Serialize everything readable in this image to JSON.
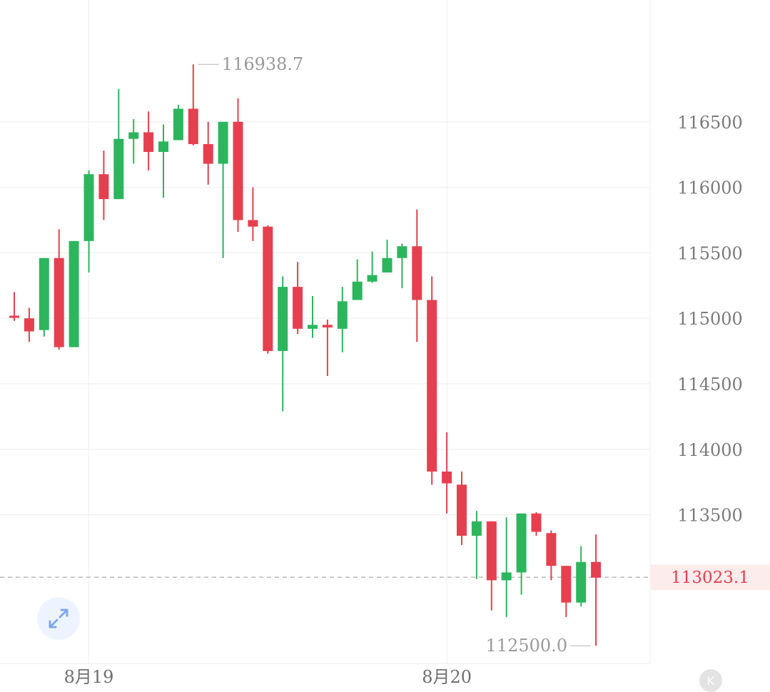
{
  "chart_data": {
    "type": "candlestick",
    "x_labels": [
      "8月19",
      "8月20"
    ],
    "y_ticks": [
      116500,
      116000,
      115500,
      115000,
      114500,
      114000,
      113500
    ],
    "ylim": [
      112365,
      117430
    ],
    "grid": true,
    "candles": [
      {
        "o": 115020,
        "c": 115010,
        "h": 115200,
        "l": 114980
      },
      {
        "o": 115000,
        "c": 114900,
        "h": 115080,
        "l": 114820
      },
      {
        "o": 114910,
        "c": 115460,
        "h": 115460,
        "l": 114860
      },
      {
        "o": 115460,
        "c": 114780,
        "h": 115680,
        "l": 114760
      },
      {
        "o": 114780,
        "c": 115590,
        "h": 115590,
        "l": 114780
      },
      {
        "o": 115590,
        "c": 116100,
        "h": 116130,
        "l": 115350
      },
      {
        "o": 116100,
        "c": 115910,
        "h": 116280,
        "l": 115750
      },
      {
        "o": 115910,
        "c": 116370,
        "h": 116750,
        "l": 115910
      },
      {
        "o": 116370,
        "c": 116420,
        "h": 116520,
        "l": 116180
      },
      {
        "o": 116420,
        "c": 116270,
        "h": 116580,
        "l": 116130
      },
      {
        "o": 116270,
        "c": 116350,
        "h": 116480,
        "l": 115920
      },
      {
        "o": 116360,
        "c": 116600,
        "h": 116630,
        "l": 116360
      },
      {
        "o": 116600,
        "c": 116330,
        "h": 116938.7,
        "l": 116320
      },
      {
        "o": 116330,
        "c": 116180,
        "h": 116500,
        "l": 116020
      },
      {
        "o": 116180,
        "c": 116500,
        "h": 116500,
        "l": 115460
      },
      {
        "o": 116500,
        "c": 115750,
        "h": 116680,
        "l": 115660
      },
      {
        "o": 115750,
        "c": 115700,
        "h": 116000,
        "l": 115590
      },
      {
        "o": 115700,
        "c": 114750,
        "h": 115710,
        "l": 114730
      },
      {
        "o": 114750,
        "c": 115240,
        "h": 115320,
        "l": 114290
      },
      {
        "o": 115240,
        "c": 114920,
        "h": 115430,
        "l": 114880
      },
      {
        "o": 114920,
        "c": 114950,
        "h": 115170,
        "l": 114850
      },
      {
        "o": 114950,
        "c": 114930,
        "h": 114990,
        "l": 114560
      },
      {
        "o": 114920,
        "c": 115130,
        "h": 115240,
        "l": 114740
      },
      {
        "o": 115140,
        "c": 115280,
        "h": 115450,
        "l": 115140
      },
      {
        "o": 115280,
        "c": 115330,
        "h": 115510,
        "l": 115270
      },
      {
        "o": 115350,
        "c": 115460,
        "h": 115600,
        "l": 115350
      },
      {
        "o": 115460,
        "c": 115550,
        "h": 115570,
        "l": 115230
      },
      {
        "o": 115550,
        "c": 115140,
        "h": 115830,
        "l": 114820
      },
      {
        "o": 115140,
        "c": 113830,
        "h": 115320,
        "l": 113730
      },
      {
        "o": 113830,
        "c": 113740,
        "h": 114130,
        "l": 113510
      },
      {
        "o": 113730,
        "c": 113340,
        "h": 113830,
        "l": 113270
      },
      {
        "o": 113340,
        "c": 113450,
        "h": 113530,
        "l": 113010
      },
      {
        "o": 113450,
        "c": 113000,
        "h": 113450,
        "l": 112770
      },
      {
        "o": 113000,
        "c": 113060,
        "h": 113480,
        "l": 112720
      },
      {
        "o": 113060,
        "c": 113510,
        "h": 113510,
        "l": 112890
      },
      {
        "o": 113510,
        "c": 113370,
        "h": 113520,
        "l": 113340
      },
      {
        "o": 113360,
        "c": 113110,
        "h": 113380,
        "l": 113000
      },
      {
        "o": 113110,
        "c": 112830,
        "h": 113110,
        "l": 112720
      },
      {
        "o": 112830,
        "c": 113140,
        "h": 113260,
        "l": 112800
      },
      {
        "o": 113140,
        "c": 113020,
        "h": 113350,
        "l": 112500
      }
    ],
    "high_label": "116938.7",
    "low_label": "112500.0",
    "last_price": "113023.1"
  },
  "colors": {
    "up": "#2db55d",
    "down": "#e5404f",
    "grid": "#eeeeee",
    "last_line": "#bbbbbb",
    "last_bg": "#fdecec"
  },
  "controls": {
    "expand_icon": "expand-arrows-icon",
    "k_label": "K"
  }
}
